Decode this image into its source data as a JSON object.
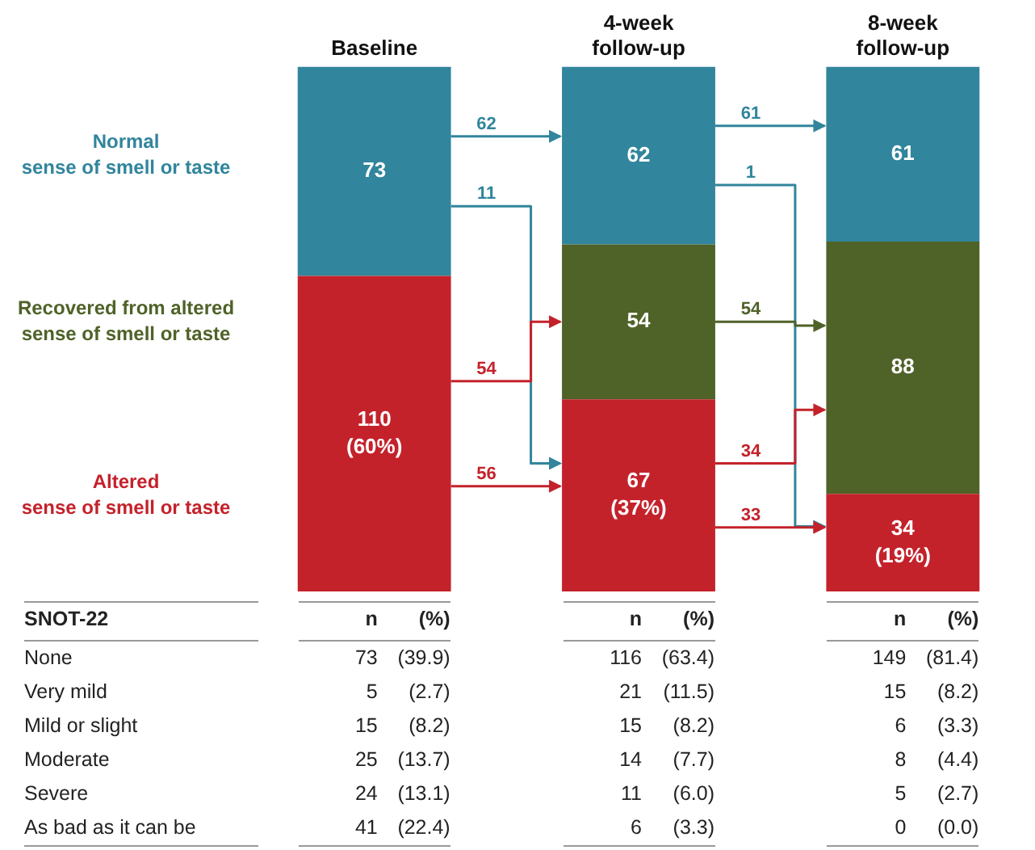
{
  "chart_data": [
    {
      "type": "bar",
      "stacked": true,
      "tick_labels": "x",
      "categories": [
        "Baseline",
        "4-week follow-up",
        "8-week follow-up"
      ],
      "series": [
        {
          "name": "Altered sense of smell or taste",
          "color": "#c4222b",
          "values": [
            110,
            67,
            34
          ],
          "value_labels": [
            "110 (60%)",
            "67 (37%)",
            "34 (19%)"
          ]
        },
        {
          "name": "Recovered from altered sense of smell or taste",
          "color": "#4f6228",
          "values": [
            null,
            54,
            88
          ],
          "value_labels": [
            null,
            "54",
            "88"
          ]
        },
        {
          "name": "Normal sense of smell or taste",
          "color": "#31859c",
          "values": [
            73,
            62,
            61
          ],
          "value_labels": [
            "73",
            "62",
            "61"
          ]
        }
      ],
      "annotations": [
        "62",
        "11",
        "54",
        "56",
        "61",
        "1",
        "54",
        "34",
        "33"
      ]
    },
    {
      "type": "other",
      "title": "SNOT-22",
      "categories": [
        "None",
        "Very mild",
        "Mild or slight",
        "Moderate",
        "Severe",
        "As bad as it can be"
      ],
      "series": [
        {
          "name": "n",
          "values": [
            73,
            5,
            15,
            25,
            24,
            41
          ],
          "value_labels": [
            "73",
            "5",
            "15",
            "25",
            "24",
            "41"
          ]
        },
        {
          "name": "(%)",
          "values": [
            39.9,
            2.7,
            8.2,
            13.7,
            13.1,
            22.4
          ],
          "value_labels": [
            "(39.9)",
            "(2.7)",
            "(8.2)",
            "(13.7)",
            "(13.1)",
            "(22.4)"
          ]
        },
        {
          "name": "n",
          "values": [
            116,
            21,
            15,
            14,
            11,
            6
          ],
          "value_labels": [
            "116",
            "21",
            "15",
            "14",
            "11",
            "6"
          ]
        },
        {
          "name": "(%)",
          "values": [
            63.4,
            11.5,
            8.2,
            7.7,
            6.0,
            3.3
          ],
          "value_labels": [
            "(63.4)",
            "(11.5)",
            "(8.2)",
            "(7.7)",
            "(6.0)",
            "(3.3)"
          ]
        },
        {
          "name": "n",
          "values": [
            149,
            15,
            6,
            8,
            5,
            0
          ],
          "value_labels": [
            "149",
            "15",
            "6",
            "8",
            "5",
            "0"
          ]
        },
        {
          "name": "(%)",
          "values": [
            81.4,
            8.2,
            3.3,
            4.4,
            2.7,
            0.0
          ],
          "value_labels": [
            "(81.4)",
            "(8.2)",
            "(3.3)",
            "(4.4)",
            "(2.7)",
            "(0.0)"
          ]
        }
      ]
    }
  ]
}
